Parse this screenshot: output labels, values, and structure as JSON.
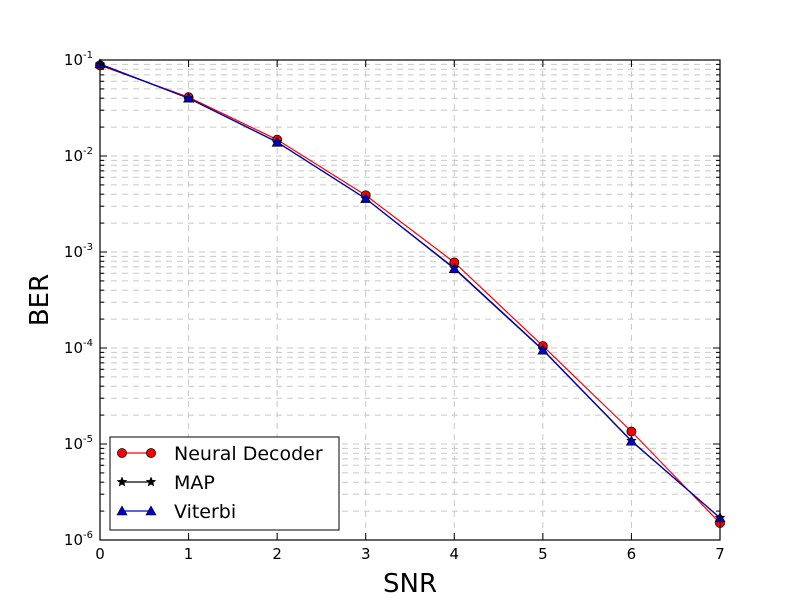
{
  "chart_data": {
    "type": "line",
    "title": "",
    "xlabel": "SNR",
    "ylabel": "BER",
    "xlim": [
      0,
      7
    ],
    "ylim": [
      1e-06,
      0.1
    ],
    "yscale": "log",
    "grid": true,
    "legend_position": "bottom-left",
    "x_ticks": [
      "0",
      "1",
      "2",
      "3",
      "4",
      "5",
      "6",
      "7"
    ],
    "y_ticks": [
      {
        "base": "10",
        "exp": "-6",
        "value": 1e-06
      },
      {
        "base": "10",
        "exp": "-5",
        "value": 1e-05
      },
      {
        "base": "10",
        "exp": "-4",
        "value": 0.0001
      },
      {
        "base": "10",
        "exp": "-3",
        "value": 0.001
      },
      {
        "base": "10",
        "exp": "-2",
        "value": 0.01
      },
      {
        "base": "10",
        "exp": "-1",
        "value": 0.1
      }
    ],
    "x": [
      0,
      1,
      2,
      3,
      4,
      5,
      6,
      7
    ],
    "series": [
      {
        "name": "Neural Decoder",
        "color": "#ff0000",
        "marker": "circle",
        "values": [
          0.088,
          0.041,
          0.0148,
          0.0039,
          0.00078,
          0.000105,
          1.35e-05,
          1.5e-06
        ]
      },
      {
        "name": "MAP",
        "color": "#000000",
        "marker": "star",
        "values": [
          0.09,
          0.04,
          0.014,
          0.0036,
          0.00068,
          9.6e-05,
          1.08e-05,
          1.7e-06
        ]
      },
      {
        "name": "Viterbi",
        "color": "#0000cc",
        "marker": "triangle",
        "values": [
          0.091,
          0.04,
          0.0139,
          0.0036,
          0.00067,
          9.5e-05,
          1.07e-05,
          1.7e-06
        ]
      }
    ]
  }
}
